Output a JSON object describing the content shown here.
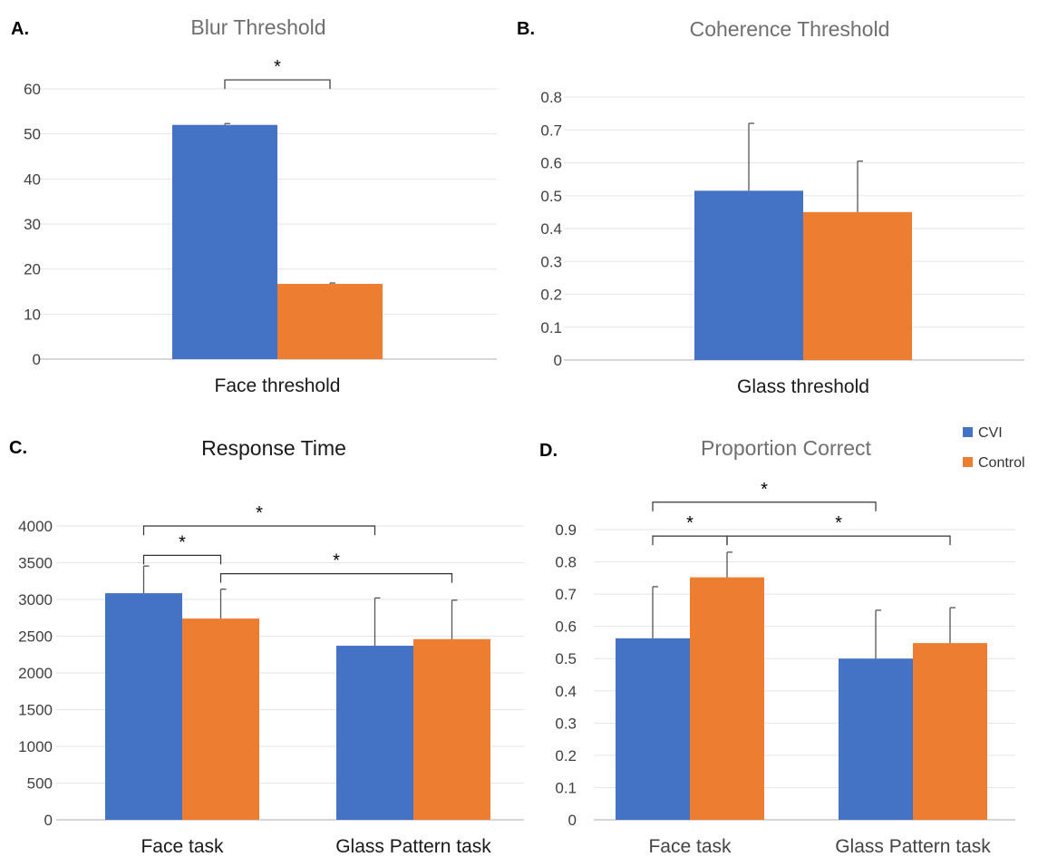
{
  "chart_data": [
    {
      "panel": "A.",
      "type": "bar",
      "title": "Blur Threshold",
      "categories": [
        "Face threshold"
      ],
      "series": [
        {
          "name": "CVI",
          "values": [
            52
          ],
          "error": [
            0.3
          ],
          "color": "#4472C4"
        },
        {
          "name": "Control",
          "values": [
            16.7
          ],
          "error": [
            0.2
          ],
          "color": "#ED7D31"
        }
      ],
      "ylim": [
        0,
        60
      ],
      "yticks": [
        0,
        10,
        20,
        30,
        40,
        50,
        60
      ],
      "grid": true,
      "significance": [
        {
          "label": "*",
          "from": {
            "category": 0,
            "series": 0
          },
          "to": {
            "category": 0,
            "series": 1
          },
          "level": 62
        }
      ]
    },
    {
      "panel": "B.",
      "type": "bar",
      "title": "Coherence Threshold",
      "categories": [
        "Glass threshold"
      ],
      "series": [
        {
          "name": "CVI",
          "values": [
            0.515
          ],
          "error": [
            0.205
          ],
          "color": "#4472C4"
        },
        {
          "name": "Control",
          "values": [
            0.45
          ],
          "error": [
            0.155
          ],
          "color": "#ED7D31"
        }
      ],
      "ylim": [
        0,
        0.8
      ],
      "yticks": [
        "0",
        "0.1",
        "0.2",
        "0.3",
        "0.4",
        "0.5",
        "0.6",
        "0.7",
        "0.8"
      ],
      "grid": true,
      "significance": []
    },
    {
      "panel": "C.",
      "type": "bar",
      "title": "Response Time",
      "categories": [
        "Face task",
        "Glass Pattern task"
      ],
      "series": [
        {
          "name": "CVI",
          "values": [
            3085,
            2370
          ],
          "error": [
            370,
            650
          ],
          "color": "#4472C4"
        },
        {
          "name": "Control",
          "values": [
            2740,
            2460
          ],
          "error": [
            400,
            530
          ],
          "color": "#ED7D31"
        }
      ],
      "ylim": [
        0,
        4000
      ],
      "yticks": [
        0,
        500,
        1000,
        1500,
        2000,
        2500,
        3000,
        3500,
        4000
      ],
      "grid": true,
      "significance": [
        {
          "label": "*",
          "from": {
            "category": 0,
            "series": 0
          },
          "to": {
            "category": 0,
            "series": 1
          },
          "level": 3600
        },
        {
          "label": "*",
          "from": {
            "category": 0,
            "series": 0
          },
          "to": {
            "category": 1,
            "series": 0
          },
          "level": 4000
        },
        {
          "label": "*",
          "from": {
            "category": 0,
            "series": 1
          },
          "to": {
            "category": 1,
            "series": 1
          },
          "level": 3350
        }
      ]
    },
    {
      "panel": "D.",
      "type": "bar",
      "title": "Proportion Correct",
      "categories": [
        "Face task",
        "Glass Pattern task"
      ],
      "series": [
        {
          "name": "CVI",
          "values": [
            0.563,
            0.5
          ],
          "error": [
            0.16,
            0.15
          ],
          "color": "#4472C4"
        },
        {
          "name": "Control",
          "values": [
            0.752,
            0.548
          ],
          "error": [
            0.078,
            0.11
          ],
          "color": "#ED7D31"
        }
      ],
      "ylim": [
        0,
        0.9
      ],
      "yticks": [
        "0",
        "0.1",
        "0.2",
        "0.3",
        "0.4",
        "0.5",
        "0.6",
        "0.7",
        "0.8",
        "0.9"
      ],
      "grid": true,
      "legend": {
        "placement": "top-right",
        "entries": [
          "CVI",
          "Control"
        ]
      },
      "significance": [
        {
          "label": "*",
          "from": {
            "category": 0,
            "series": 0
          },
          "to": {
            "category": 0,
            "series": 1
          },
          "level": 0.88
        },
        {
          "label": "*",
          "from": {
            "category": 0,
            "series": 0
          },
          "to": {
            "category": 1,
            "series": 0
          },
          "level": 0.985
        },
        {
          "label": "*",
          "from": {
            "category": 0,
            "series": 1
          },
          "to": {
            "category": 1,
            "series": 1
          },
          "level": 0.88
        }
      ]
    }
  ]
}
